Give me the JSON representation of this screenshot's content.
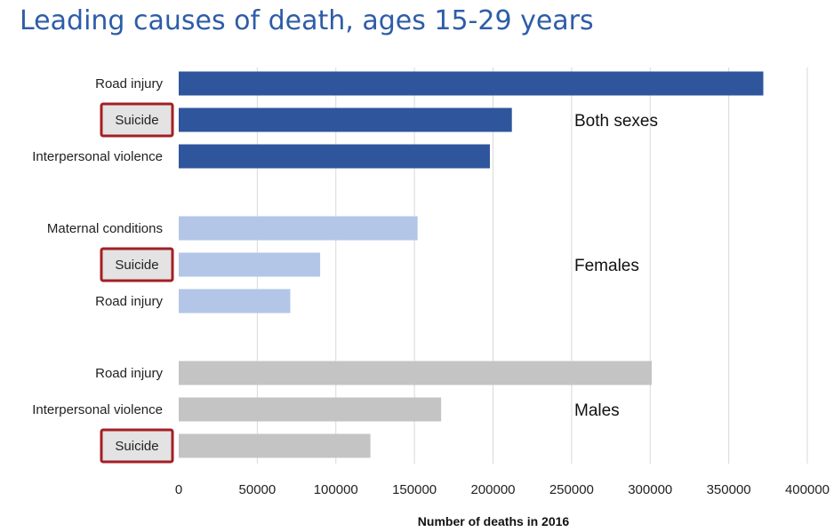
{
  "title": "Leading causes of death, ages 15-29 years",
  "chart_data": {
    "type": "bar",
    "orientation": "horizontal",
    "title": "Leading causes of death, ages 15-29 years",
    "xlabel": "Number of deaths in 2016",
    "ylabel": "",
    "xlim": [
      0,
      400000
    ],
    "xticks": [
      0,
      50000,
      100000,
      150000,
      200000,
      250000,
      300000,
      350000,
      400000
    ],
    "grid": "vertical",
    "highlighted_category": "Suicide",
    "groups": [
      {
        "name": "Both sexes",
        "color": "#2F559C",
        "bars": [
          {
            "category": "Road injury",
            "value": 372000,
            "highlighted": false
          },
          {
            "category": "Suicide",
            "value": 212000,
            "highlighted": true
          },
          {
            "category": "Interpersonal violence",
            "value": 198000,
            "highlighted": false
          }
        ]
      },
      {
        "name": "Females",
        "color": "#B3C6E7",
        "bars": [
          {
            "category": "Maternal conditions",
            "value": 152000,
            "highlighted": false
          },
          {
            "category": "Suicide",
            "value": 90000,
            "highlighted": true
          },
          {
            "category": "Road injury",
            "value": 71000,
            "highlighted": false
          }
        ]
      },
      {
        "name": "Males",
        "color": "#C4C4C4",
        "bars": [
          {
            "category": "Road injury",
            "value": 301000,
            "highlighted": false
          },
          {
            "category": "Interpersonal violence",
            "value": 167000,
            "highlighted": false
          },
          {
            "category": "Suicide",
            "value": 122000,
            "highlighted": true
          }
        ]
      }
    ],
    "colors": {
      "highlight_border": "#A31F24",
      "highlight_fill": "#E3E3E3",
      "gridline": "#D9D9D9",
      "title": "#2E5DA8"
    }
  }
}
